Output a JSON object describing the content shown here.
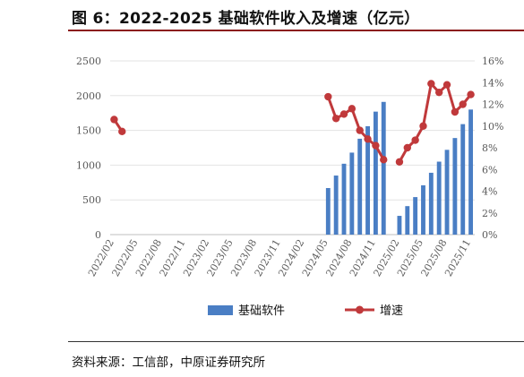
{
  "title": "图 6：2022-2025 基础软件收入及增速（亿元）",
  "source": "资料来源：工信部，中原证券研究所",
  "colors": {
    "bar": "#4a7ec4",
    "line": "#c0393b",
    "title_rule": "#8b1a1a"
  },
  "chart_data": {
    "type": "bar+line",
    "y_left": {
      "min": 0,
      "max": 2500,
      "ticks": [
        "0",
        "500",
        "1000",
        "1500",
        "2000",
        "2500"
      ]
    },
    "y_right": {
      "min": 0,
      "max": 16,
      "ticks": [
        "0%",
        "2%",
        "4%",
        "6%",
        "8%",
        "10%",
        "12%",
        "14%",
        "16%"
      ]
    },
    "x_tick_labels": [
      "2022/02",
      "2022/05",
      "2022/08",
      "2022/11",
      "2023/02",
      "2023/05",
      "2023/08",
      "2023/11",
      "2024/02",
      "2024/05",
      "2024/08",
      "2024/11",
      "2025/02",
      "2025/05",
      "2025/08",
      "2025/11"
    ],
    "categories": [
      "2022/02",
      "2022/03",
      "2022/04",
      "2022/05",
      "2022/06",
      "2022/07",
      "2022/08",
      "2022/09",
      "2022/10",
      "2022/11",
      "2022/12",
      "2023/01",
      "2023/02",
      "2023/03",
      "2023/04",
      "2023/05",
      "2023/06",
      "2023/07",
      "2023/08",
      "2023/09",
      "2023/10",
      "2023/11",
      "2023/12",
      "2024/01",
      "2024/02",
      "2024/03",
      "2024/04",
      "2024/05",
      "2024/06",
      "2024/07",
      "2024/08",
      "2024/09",
      "2024/10",
      "2024/11",
      "2024/12",
      "2025/01",
      "2025/02",
      "2025/03",
      "2025/04",
      "2025/05",
      "2025/06",
      "2025/07",
      "2025/08",
      "2025/09",
      "2025/10",
      "2025/11"
    ],
    "series": [
      {
        "name": "基础软件",
        "type": "bar",
        "axis": "left",
        "values": [
          null,
          null,
          null,
          null,
          null,
          null,
          null,
          null,
          null,
          null,
          null,
          null,
          null,
          null,
          null,
          null,
          null,
          null,
          null,
          null,
          null,
          null,
          null,
          null,
          null,
          null,
          null,
          670,
          850,
          1020,
          1180,
          1380,
          1560,
          1770,
          1910,
          null,
          270,
          410,
          540,
          710,
          890,
          1050,
          1220,
          1390,
          1590,
          1800
        ]
      },
      {
        "name": "增速",
        "type": "line",
        "axis": "right",
        "values": [
          10.6,
          9.5,
          null,
          null,
          null,
          null,
          null,
          null,
          null,
          null,
          null,
          null,
          null,
          null,
          null,
          null,
          null,
          null,
          null,
          null,
          null,
          null,
          null,
          null,
          null,
          null,
          null,
          12.7,
          10.7,
          11.1,
          11.6,
          9.6,
          8.8,
          8.2,
          6.9,
          null,
          6.7,
          8.0,
          8.7,
          10.0,
          13.9,
          13.1,
          13.8,
          11.3,
          12.0,
          12.9
        ]
      }
    ],
    "legend_position": "bottom"
  }
}
